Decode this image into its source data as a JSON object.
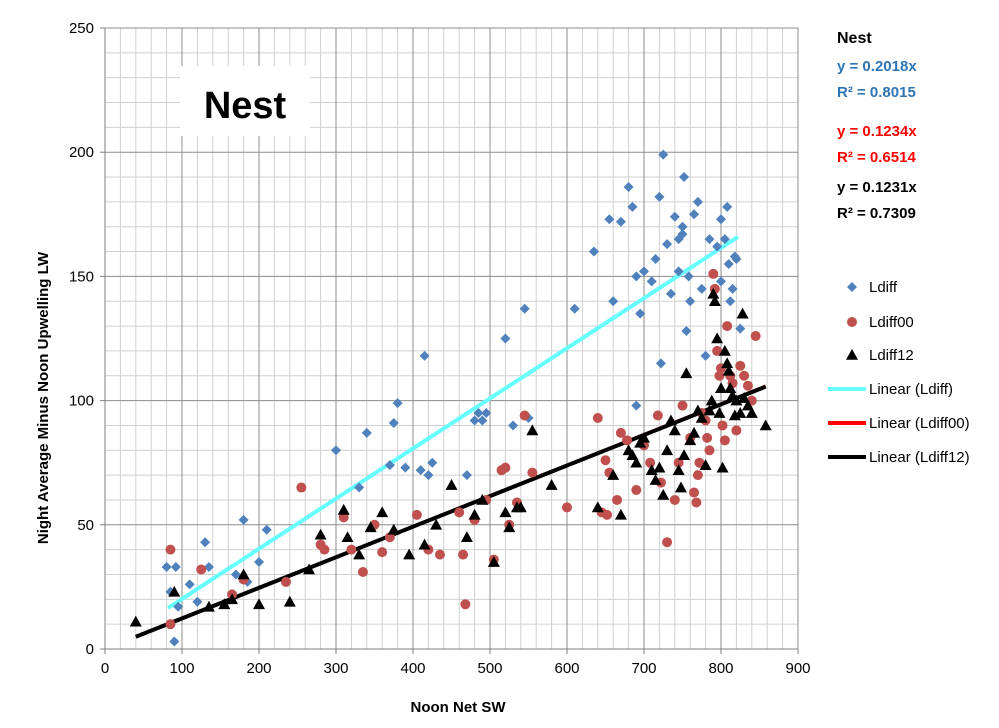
{
  "chart_data": {
    "type": "scatter",
    "title": "Nest",
    "xlabel": "Noon Net SW",
    "ylabel": "Night Average Minus Noon Upwelling LW",
    "xlim": [
      0,
      900
    ],
    "ylim": [
      0,
      250
    ],
    "x_ticks": [
      "0",
      "100",
      "200",
      "300",
      "400",
      "500",
      "600",
      "700",
      "800",
      "900"
    ],
    "y_ticks": [
      "0",
      "50",
      "100",
      "150",
      "200",
      "250"
    ],
    "grid": true,
    "legend_position": "right",
    "equations_heading": "Nest",
    "equations": [
      {
        "eq": "y = 0.2018x",
        "r2": "R² = 0.8015",
        "color": "#2e75b6"
      },
      {
        "eq": "y = 0.1234x",
        "r2": "R² = 0.6514",
        "color": "#ff0000"
      },
      {
        "eq": "y = 0.1231x",
        "r2": "R² = 0.7309",
        "color": "#000000"
      }
    ],
    "legend": [
      {
        "label": "Ldiff",
        "kind": "diamond",
        "color": "#4f81bd"
      },
      {
        "label": "Ldiff00",
        "kind": "circle",
        "color": "#c0504d"
      },
      {
        "label": "Ldiff12",
        "kind": "triangle",
        "color": "#000000"
      },
      {
        "label": "Linear (Ldiff)",
        "kind": "line",
        "color": "#66ffff"
      },
      {
        "label": "Linear (Ldiff00)",
        "kind": "line",
        "color": "#ff0000"
      },
      {
        "label": "Linear (Ldiff12)",
        "kind": "line",
        "color": "#000000"
      }
    ],
    "series": [
      {
        "name": "Ldiff",
        "marker": "diamond",
        "color": "#4f81bd",
        "points": [
          [
            80,
            33
          ],
          [
            85,
            23
          ],
          [
            90,
            3
          ],
          [
            92,
            33
          ],
          [
            95,
            17
          ],
          [
            110,
            26
          ],
          [
            120,
            19
          ],
          [
            130,
            43
          ],
          [
            135,
            33
          ],
          [
            170,
            30
          ],
          [
            180,
            52
          ],
          [
            185,
            27
          ],
          [
            200,
            35
          ],
          [
            210,
            48
          ],
          [
            300,
            80
          ],
          [
            330,
            65
          ],
          [
            340,
            87
          ],
          [
            370,
            74
          ],
          [
            375,
            91
          ],
          [
            380,
            99
          ],
          [
            390,
            73
          ],
          [
            410,
            72
          ],
          [
            415,
            118
          ],
          [
            420,
            70
          ],
          [
            425,
            75
          ],
          [
            470,
            70
          ],
          [
            480,
            92
          ],
          [
            485,
            95
          ],
          [
            490,
            92
          ],
          [
            495,
            95
          ],
          [
            520,
            125
          ],
          [
            530,
            90
          ],
          [
            545,
            137
          ],
          [
            550,
            93
          ],
          [
            610,
            137
          ],
          [
            635,
            160
          ],
          [
            655,
            173
          ],
          [
            660,
            140
          ],
          [
            670,
            172
          ],
          [
            680,
            186
          ],
          [
            685,
            178
          ],
          [
            690,
            150
          ],
          [
            690,
            98
          ],
          [
            695,
            135
          ],
          [
            700,
            152
          ],
          [
            710,
            148
          ],
          [
            715,
            157
          ],
          [
            720,
            182
          ],
          [
            722,
            115
          ],
          [
            725,
            199
          ],
          [
            730,
            163
          ],
          [
            735,
            143
          ],
          [
            740,
            174
          ],
          [
            745,
            165
          ],
          [
            745,
            152
          ],
          [
            750,
            167
          ],
          [
            750,
            170
          ],
          [
            752,
            190
          ],
          [
            755,
            128
          ],
          [
            758,
            150
          ],
          [
            760,
            140
          ],
          [
            765,
            175
          ],
          [
            770,
            180
          ],
          [
            775,
            145
          ],
          [
            780,
            118
          ],
          [
            785,
            165
          ],
          [
            795,
            162
          ],
          [
            800,
            173
          ],
          [
            800,
            148
          ],
          [
            805,
            165
          ],
          [
            808,
            178
          ],
          [
            810,
            155
          ],
          [
            812,
            140
          ],
          [
            815,
            145
          ],
          [
            820,
            157
          ],
          [
            825,
            129
          ],
          [
            818,
            158
          ]
        ]
      },
      {
        "name": "Ldiff00",
        "marker": "circle",
        "color": "#c0504d",
        "points": [
          [
            85,
            40
          ],
          [
            85,
            10
          ],
          [
            125,
            32
          ],
          [
            165,
            22
          ],
          [
            180,
            28
          ],
          [
            235,
            27
          ],
          [
            255,
            65
          ],
          [
            280,
            42
          ],
          [
            285,
            40
          ],
          [
            310,
            53
          ],
          [
            320,
            40
          ],
          [
            335,
            31
          ],
          [
            350,
            50
          ],
          [
            360,
            39
          ],
          [
            370,
            45
          ],
          [
            405,
            54
          ],
          [
            420,
            40
          ],
          [
            435,
            38
          ],
          [
            460,
            55
          ],
          [
            465,
            38
          ],
          [
            468,
            18
          ],
          [
            480,
            52
          ],
          [
            495,
            60
          ],
          [
            505,
            36
          ],
          [
            515,
            72
          ],
          [
            520,
            73
          ],
          [
            525,
            50
          ],
          [
            535,
            59
          ],
          [
            545,
            94
          ],
          [
            555,
            71
          ],
          [
            600,
            57
          ],
          [
            640,
            93
          ],
          [
            645,
            55
          ],
          [
            650,
            76
          ],
          [
            652,
            54
          ],
          [
            655,
            71
          ],
          [
            665,
            60
          ],
          [
            670,
            87
          ],
          [
            678,
            84
          ],
          [
            690,
            64
          ],
          [
            700,
            82
          ],
          [
            708,
            75
          ],
          [
            718,
            94
          ],
          [
            722,
            67
          ],
          [
            730,
            43
          ],
          [
            740,
            60
          ],
          [
            745,
            75
          ],
          [
            750,
            98
          ],
          [
            760,
            85
          ],
          [
            765,
            63
          ],
          [
            768,
            59
          ],
          [
            770,
            70
          ],
          [
            772,
            75
          ],
          [
            775,
            95
          ],
          [
            780,
            92
          ],
          [
            782,
            85
          ],
          [
            785,
            80
          ],
          [
            790,
            151
          ],
          [
            792,
            145
          ],
          [
            795,
            120
          ],
          [
            798,
            110
          ],
          [
            800,
            113
          ],
          [
            802,
            90
          ],
          [
            805,
            84
          ],
          [
            808,
            130
          ],
          [
            812,
            110
          ],
          [
            815,
            107
          ],
          [
            820,
            88
          ],
          [
            825,
            114
          ],
          [
            830,
            110
          ],
          [
            835,
            106
          ],
          [
            840,
            100
          ],
          [
            845,
            126
          ]
        ]
      },
      {
        "name": "Ldiff12",
        "marker": "triangle",
        "color": "#000000",
        "points": [
          [
            40,
            11
          ],
          [
            90,
            23
          ],
          [
            135,
            17
          ],
          [
            155,
            18
          ],
          [
            165,
            20
          ],
          [
            180,
            30
          ],
          [
            200,
            18
          ],
          [
            240,
            19
          ],
          [
            265,
            32
          ],
          [
            280,
            46
          ],
          [
            310,
            56
          ],
          [
            315,
            45
          ],
          [
            330,
            38
          ],
          [
            345,
            49
          ],
          [
            360,
            55
          ],
          [
            375,
            48
          ],
          [
            395,
            38
          ],
          [
            415,
            42
          ],
          [
            430,
            50
          ],
          [
            450,
            66
          ],
          [
            470,
            45
          ],
          [
            480,
            54
          ],
          [
            490,
            60
          ],
          [
            505,
            35
          ],
          [
            520,
            55
          ],
          [
            525,
            49
          ],
          [
            535,
            57
          ],
          [
            540,
            57
          ],
          [
            555,
            88
          ],
          [
            580,
            66
          ],
          [
            640,
            57
          ],
          [
            660,
            70
          ],
          [
            670,
            54
          ],
          [
            680,
            80
          ],
          [
            685,
            78
          ],
          [
            690,
            75
          ],
          [
            695,
            83
          ],
          [
            700,
            85
          ],
          [
            710,
            72
          ],
          [
            715,
            68
          ],
          [
            720,
            73
          ],
          [
            725,
            62
          ],
          [
            730,
            80
          ],
          [
            735,
            92
          ],
          [
            740,
            88
          ],
          [
            745,
            72
          ],
          [
            748,
            65
          ],
          [
            752,
            78
          ],
          [
            755,
            111
          ],
          [
            760,
            84
          ],
          [
            765,
            87
          ],
          [
            770,
            96
          ],
          [
            775,
            93
          ],
          [
            780,
            74
          ],
          [
            785,
            96
          ],
          [
            788,
            100
          ],
          [
            790,
            143
          ],
          [
            792,
            140
          ],
          [
            795,
            125
          ],
          [
            798,
            95
          ],
          [
            800,
            105
          ],
          [
            802,
            73
          ],
          [
            805,
            120
          ],
          [
            808,
            115
          ],
          [
            810,
            112
          ],
          [
            812,
            105
          ],
          [
            815,
            102
          ],
          [
            818,
            94
          ],
          [
            820,
            100
          ],
          [
            825,
            95
          ],
          [
            828,
            135
          ],
          [
            830,
            101
          ],
          [
            835,
            98
          ],
          [
            840,
            95
          ],
          [
            858,
            90
          ]
        ]
      }
    ],
    "trendlines": [
      {
        "name": "Linear (Ldiff)",
        "slope": 0.2018,
        "x_range": [
          82,
          822
        ],
        "color": "#66ffff",
        "width": 4
      },
      {
        "name": "Linear (Ldiff00)",
        "slope": 0.1234,
        "x_range": [
          40,
          858
        ],
        "color": "#ff0000",
        "width": 3
      },
      {
        "name": "Linear (Ldiff12)",
        "slope": 0.1231,
        "x_range": [
          40,
          858
        ],
        "color": "#000000",
        "width": 4
      }
    ]
  }
}
